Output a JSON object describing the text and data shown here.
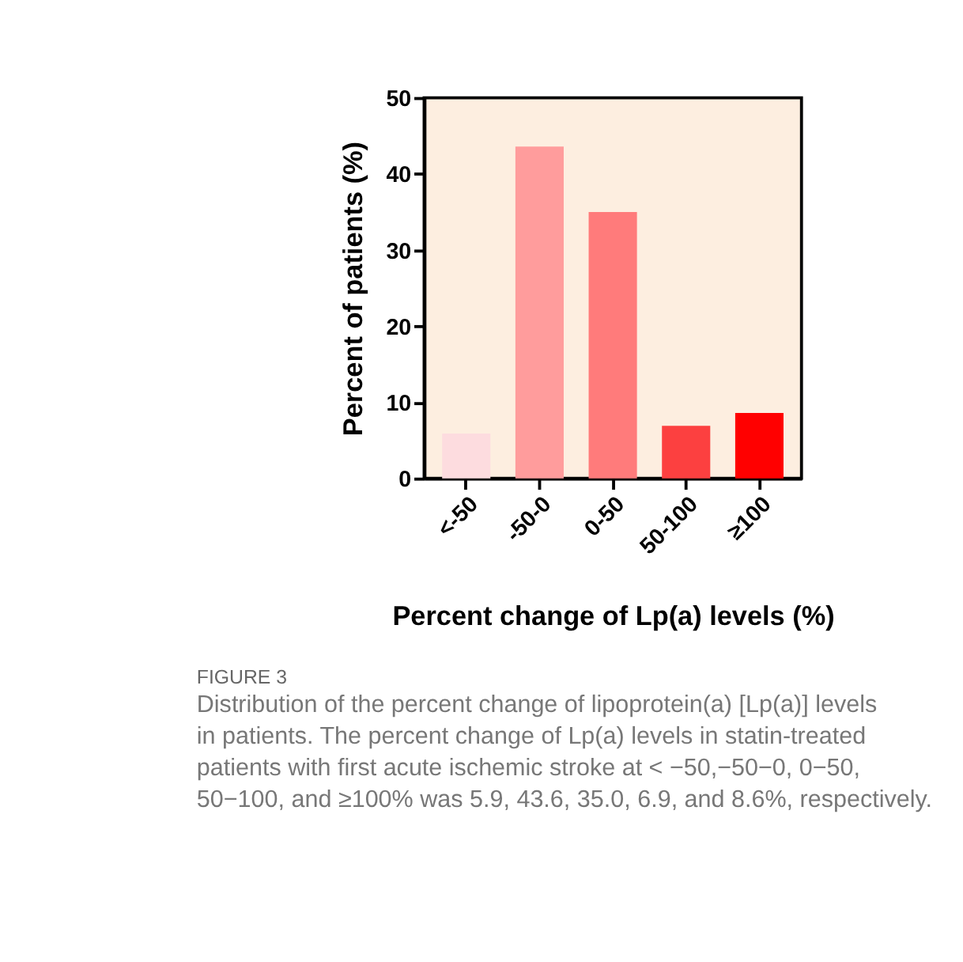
{
  "chart_data": {
    "type": "bar",
    "categories": [
      "<-50",
      "-50-0",
      "0-50",
      "50-100",
      "≥100"
    ],
    "values": [
      5.9,
      43.6,
      35.0,
      6.9,
      8.6
    ],
    "colors": [
      "#fddcdf",
      "#ff9c9c",
      "#ff7b7b",
      "#fc4040",
      "#ff0000"
    ],
    "xlabel": "Percent change of Lp(a) levels (%)",
    "ylabel": "Percent of patients (%)",
    "ylim": [
      0,
      50
    ],
    "yticks": [
      0,
      10,
      20,
      30,
      40,
      50
    ],
    "grid": false,
    "annotations": [
      "FIGURE 3",
      "Distribution of the percent change of lipoprotein(a) [Lp(a)] levels in patients. The percent change of Lp(a) levels in statin-treated patients with first acute ischemic stroke at < −50,−50−0, 0−50, 50−100, and ≥100% was 5.9, 43.6, 35.0, 6.9, and 8.6%, respectively."
    ]
  }
}
